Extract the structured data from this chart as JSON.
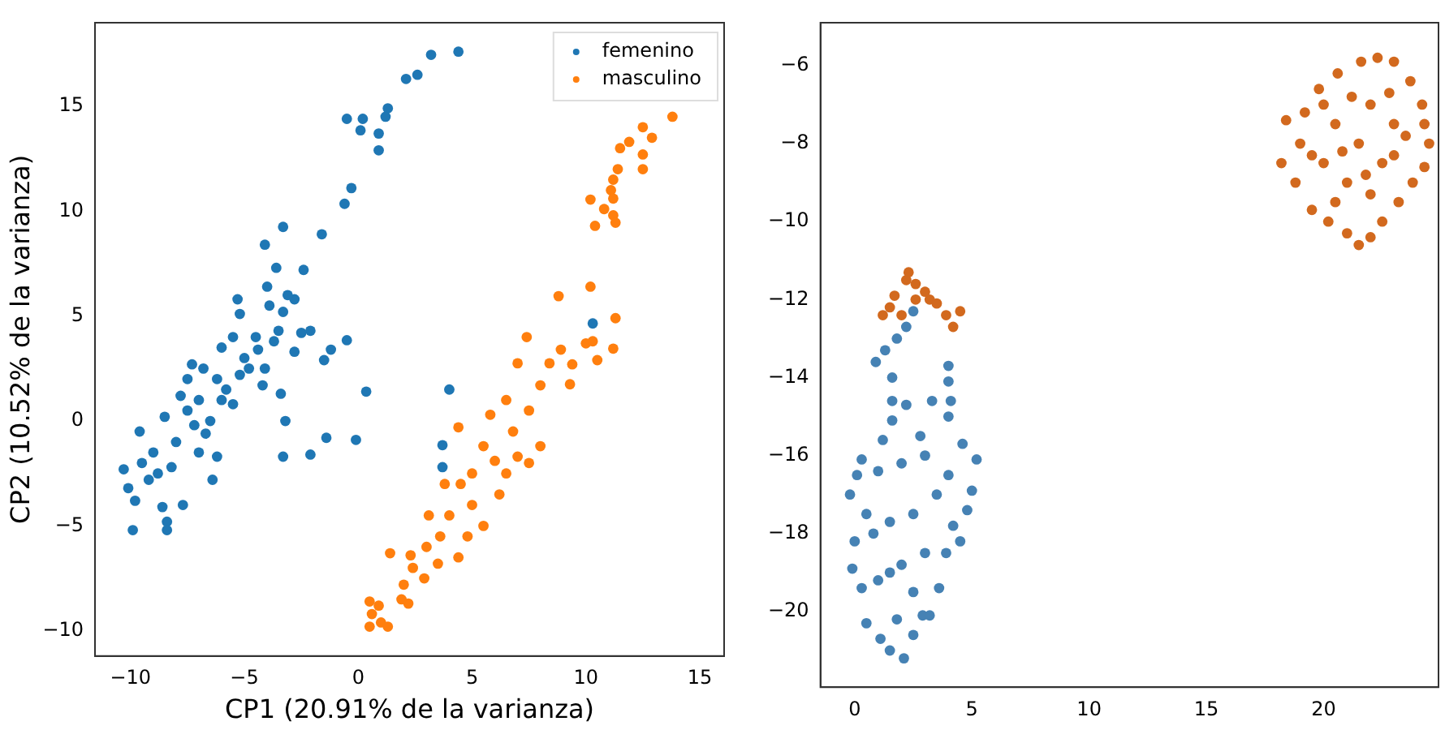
{
  "chart_data": [
    {
      "type": "scatter",
      "xlabel": "CP1 (20.91% de la varianza)",
      "ylabel": "CP2 (10.52% de la varianza)",
      "xlim": [
        -11.56,
        16.07
      ],
      "ylim": [
        -11.2,
        18.98
      ],
      "xticks": [
        -10,
        -5,
        0,
        5,
        10,
        15
      ],
      "yticks": [
        -10,
        -5,
        0,
        5,
        10,
        15
      ],
      "grid": false,
      "legend": "top right",
      "marker": "circle",
      "series": [
        {
          "name": "femenino",
          "color": "#1f77b4",
          "x": [
            4.4,
            3.2,
            2.6,
            2.1,
            1.3,
            1.2,
            -0.5,
            0.2,
            0.1,
            0.9,
            0.9,
            -0.3,
            -0.6,
            -3.3,
            -1.6,
            -4.1,
            -3.6,
            -2.4,
            -5.3,
            -0.5,
            -1.2,
            -1.5,
            0.35,
            4.0,
            -3.2,
            -1.4,
            -0.1,
            -3.3,
            -2.1,
            10.3,
            3.7,
            3.7,
            -3.4,
            -4.1,
            -2.1,
            -2.8,
            -10.3,
            -10.1,
            -9.8,
            -9.9,
            -8.4,
            -8.4,
            -8.6,
            -7.7,
            -9.5,
            -9,
            -9.6,
            -8.5,
            -8,
            -7.5,
            -7,
            -7.5,
            -6.8,
            -6.2,
            -6,
            -5.5,
            -5.8,
            -6.5,
            -7,
            -6.2,
            -6.4,
            -8.8,
            -9.2,
            -5,
            -4.5,
            -4.8,
            -5.5,
            -6.7,
            -7.8,
            -4.2,
            -3.5,
            -3.3,
            -3.1,
            -3.9,
            -3.7,
            -4.0,
            -2.5,
            -5.2,
            -7.3,
            -8.2,
            -7.2,
            -6,
            -5.2,
            -4.4,
            -2.8
          ],
          "values": [
            17.6,
            17.45,
            16.5,
            16.3,
            14.9,
            14.5,
            14.4,
            14.4,
            13.85,
            13.7,
            12.9,
            11.1,
            10.35,
            9.25,
            8.9,
            8.4,
            7.3,
            7.2,
            5.8,
            3.85,
            3.4,
            2.9,
            1.4,
            1.5,
            0,
            -0.8,
            -0.9,
            -1.7,
            -1.6,
            4.65,
            -1.15,
            -2.2,
            1.3,
            2.5,
            4.3,
            5.8,
            -2.3,
            -3.2,
            -3.8,
            -5.2,
            -4.8,
            -5.2,
            -4.1,
            -4,
            -2,
            -1.5,
            -0.5,
            0.2,
            -1,
            0.5,
            1,
            2,
            2.5,
            2,
            3.5,
            4,
            1.5,
            0,
            -1.5,
            -1.7,
            -2.8,
            -2.5,
            -2.8,
            3,
            4,
            2.5,
            0.8,
            -0.6,
            1.2,
            1.7,
            4.3,
            5.2,
            6.0,
            5.5,
            3.8,
            6.4,
            4.2,
            5.1,
            2.7,
            -2.2,
            -0.2,
            1,
            2.2,
            3.4,
            3.3
          ]
        },
        {
          "name": "masculino",
          "color": "#ff7f0e",
          "x": [
            13.8,
            12.5,
            12.9,
            11.9,
            11.5,
            12.5,
            11.4,
            12.5,
            11.2,
            11.1,
            11.2,
            10.2,
            10.8,
            11.2,
            11.3,
            10.4,
            8.8,
            10.2,
            11.3,
            7.4,
            10.0,
            10.3,
            11.2,
            10.5,
            8.9,
            7.0,
            8.4,
            9.4,
            9.3,
            8.0,
            6.5,
            5.8,
            4.4,
            8.0,
            7.0,
            6.0,
            5.0,
            4.5,
            6.5,
            3.8,
            3.1,
            4.0,
            5.0,
            5.5,
            4.8,
            3.6,
            4.4,
            3.0,
            2.3,
            1.4,
            2.4,
            2.9,
            2.0,
            2.2,
            1.9,
            0.5,
            0.9,
            0.6,
            1.0,
            0.5,
            1.3,
            7.5,
            6.8,
            5.5,
            7.5,
            3.5,
            6.2
          ],
          "values": [
            14.5,
            14,
            13.5,
            13.3,
            13,
            12.7,
            12,
            12,
            11.5,
            11,
            10.6,
            10.55,
            10.1,
            9.8,
            9.45,
            9.3,
            5.95,
            6.4,
            4.9,
            4,
            3.7,
            3.8,
            3.45,
            2.9,
            3.4,
            2.75,
            2.75,
            2.7,
            1.75,
            1.7,
            1.0,
            0.3,
            -0.3,
            -1.2,
            -1.7,
            -1.9,
            -2.5,
            -3.0,
            -2.5,
            -3.0,
            -4.5,
            -4.5,
            -4.0,
            -5,
            -5.5,
            -5.5,
            -6.5,
            -6.0,
            -6.4,
            -6.3,
            -7.0,
            -7.5,
            -7.8,
            -8.7,
            -8.5,
            -8.6,
            -8.8,
            -9.2,
            -9.6,
            -9.8,
            -9.8,
            0.5,
            -0.5,
            -1.2,
            -2.0,
            -6.8,
            -3.5
          ]
        }
      ]
    },
    {
      "type": "scatter",
      "xlim": [
        -1.46,
        24.9
      ],
      "ylim": [
        -21.94,
        -4.9
      ],
      "xticks": [
        0,
        5,
        10,
        15,
        20
      ],
      "yticks": [
        -20,
        -18,
        -16,
        -14,
        -12,
        -10,
        -8,
        -6
      ],
      "grid": false,
      "legend": false,
      "marker": "circle",
      "series": [
        {
          "color": "#4682b4",
          "x": [
            -0.2,
            0.1,
            0.3,
            0,
            -0.1,
            0.3,
            0.5,
            1.1,
            1.5,
            2.1,
            2.5,
            2.9,
            3.6,
            3.9,
            4.5,
            4.8,
            5.0,
            5.2,
            4.6,
            4.0,
            3.3,
            2.2,
            1.6,
            1.6,
            1.2,
            1.0,
            2.0,
            3.0,
            3.5,
            2.5,
            1.5,
            0.8,
            2.0,
            3.0,
            1.0,
            2.5,
            1.8,
            3.2,
            4.0,
            4.2,
            0.9,
            1.3,
            1.8,
            2.2,
            2.5,
            1.6,
            4.0,
            4.0,
            4.1,
            2.8,
            0.5,
            1.5
          ],
          "values": [
            -17.0,
            -16.5,
            -16.1,
            -18.2,
            -18.9,
            -19.4,
            -20.3,
            -20.7,
            -21.0,
            -21.2,
            -20.6,
            -20.1,
            -19.4,
            -18.5,
            -18.2,
            -17.4,
            -16.9,
            -16.1,
            -15.7,
            -15.0,
            -14.6,
            -14.7,
            -14.6,
            -15.1,
            -15.6,
            -16.4,
            -16.2,
            -16.0,
            -17.0,
            -17.5,
            -17.7,
            -18.0,
            -18.8,
            -18.5,
            -19.2,
            -19.5,
            -20.2,
            -20.1,
            -16.5,
            -17.8,
            -13.6,
            -13.3,
            -13.0,
            -12.7,
            -12.3,
            -14.0,
            -13.7,
            -14.1,
            -14.6,
            -15.5,
            -17.5,
            -19.0
          ]
        },
        {
          "color": "#d2691e",
          "x": [
            1.2,
            1.5,
            1.7,
            2.2,
            2.3,
            2.6,
            3.0,
            3.2,
            3.5,
            3.9,
            4.2,
            4.5,
            2.0,
            2.6,
            18.2,
            18.4,
            18.8,
            19.2,
            19.5,
            19.8,
            20.2,
            20.6,
            21.0,
            21.5,
            21.6,
            22.0,
            22.3,
            22.5,
            23.0,
            23.2,
            23.7,
            23.8,
            24.2,
            24.3,
            24.5,
            24.3,
            19.0,
            20.0,
            20.5,
            21.0,
            21.5,
            22.0,
            22.5,
            23.0,
            22.0,
            20.5,
            20.0,
            21.2,
            23.0,
            19.5,
            22.8,
            21.8,
            20.8,
            23.5
          ],
          "values": [
            -12.4,
            -12.2,
            -11.9,
            -11.5,
            -11.3,
            -11.6,
            -11.8,
            -12.0,
            -12.1,
            -12.4,
            -12.7,
            -12.3,
            -12.4,
            -12.0,
            -8.5,
            -7.4,
            -9.0,
            -7.2,
            -9.7,
            -6.6,
            -10.0,
            -6.2,
            -10.3,
            -10.6,
            -5.9,
            -10.4,
            -5.8,
            -10.0,
            -5.9,
            -9.5,
            -6.4,
            -9.0,
            -7.0,
            -8.6,
            -8.0,
            -7.5,
            -8.0,
            -8.5,
            -7.5,
            -9.0,
            -8.0,
            -7.0,
            -8.5,
            -7.5,
            -9.3,
            -9.5,
            -7.0,
            -6.8,
            -8.3,
            -8.3,
            -6.7,
            -8.8,
            -8.2,
            -7.8
          ]
        }
      ]
    }
  ]
}
